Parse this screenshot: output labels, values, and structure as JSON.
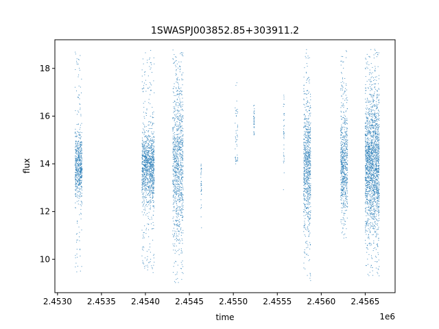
{
  "chart_data": {
    "type": "scatter",
    "title": "1SWASPJ003852.85+303911.2",
    "xlabel": "time",
    "ylabel": "flux",
    "x_offset_label": "1e6",
    "xlim": [
      2.45297,
      2.45684
    ],
    "ylim": [
      8.6,
      19.2
    ],
    "x_ticks": [
      {
        "value": 2.453,
        "label": "2.4530"
      },
      {
        "value": 2.4535,
        "label": "2.4535"
      },
      {
        "value": 2.454,
        "label": "2.4540"
      },
      {
        "value": 2.4545,
        "label": "2.4545"
      },
      {
        "value": 2.455,
        "label": "2.4550"
      },
      {
        "value": 2.4555,
        "label": "2.4555"
      },
      {
        "value": 2.456,
        "label": "2.4560"
      },
      {
        "value": 2.4565,
        "label": "2.4565"
      }
    ],
    "y_ticks": [
      {
        "value": 10,
        "label": "10"
      },
      {
        "value": 12,
        "label": "12"
      },
      {
        "value": 14,
        "label": "14"
      },
      {
        "value": 16,
        "label": "16"
      },
      {
        "value": 18,
        "label": "18"
      }
    ],
    "grid": false,
    "legend": "none",
    "marker_color": "#1f77b4",
    "clusters": [
      {
        "t_start": 2.4532,
        "t_end": 2.45328,
        "center": 13.9,
        "core": [
          12.8,
          15.0
        ],
        "min": 9.4,
        "max": 18.7,
        "density": 0.9
      },
      {
        "t_start": 2.45396,
        "t_end": 2.4541,
        "center": 13.9,
        "core": [
          12.5,
          14.9
        ],
        "min": 9.4,
        "max": 18.8,
        "density": 1.0
      },
      {
        "t_start": 2.45431,
        "t_end": 2.45443,
        "center": 14.0,
        "core": [
          11.0,
          16.5
        ],
        "min": 9.0,
        "max": 18.8,
        "density": 1.0
      },
      {
        "t_start": 2.45463,
        "t_end": 2.45464,
        "center": 13.2,
        "core": [
          12.5,
          14.0
        ],
        "min": 11.2,
        "max": 14.0,
        "density": 0.05
      },
      {
        "t_start": 2.45502,
        "t_end": 2.45505,
        "center": 15.0,
        "core": [
          14.0,
          16.6
        ],
        "min": 14.0,
        "max": 17.4,
        "density": 0.08
      },
      {
        "t_start": 2.45523,
        "t_end": 2.45524,
        "center": 15.8,
        "core": [
          15.3,
          16.3
        ],
        "min": 15.2,
        "max": 16.5,
        "density": 0.06
      },
      {
        "t_start": 2.45557,
        "t_end": 2.45558,
        "center": 15.0,
        "core": [
          13.6,
          16.6
        ],
        "min": 12.8,
        "max": 16.9,
        "density": 0.08
      },
      {
        "t_start": 2.4558,
        "t_end": 2.45588,
        "center": 13.9,
        "core": [
          11.2,
          15.5
        ],
        "min": 9.1,
        "max": 18.8,
        "density": 1.2
      },
      {
        "t_start": 2.45622,
        "t_end": 2.4563,
        "center": 14.0,
        "core": [
          11.8,
          15.0
        ],
        "min": 10.7,
        "max": 18.8,
        "density": 1.0
      },
      {
        "t_start": 2.4565,
        "t_end": 2.45666,
        "center": 14.0,
        "core": [
          11.0,
          15.5
        ],
        "min": 9.3,
        "max": 18.8,
        "density": 1.5
      }
    ]
  }
}
